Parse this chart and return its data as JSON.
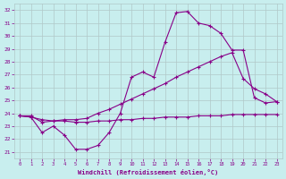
{
  "xlabel": "Windchill (Refroidissement éolien,°C)",
  "xlim": [
    -0.5,
    23.5
  ],
  "ylim": [
    20.5,
    32.5
  ],
  "yticks": [
    21,
    22,
    23,
    24,
    25,
    26,
    27,
    28,
    29,
    30,
    31,
    32
  ],
  "xticks": [
    0,
    1,
    2,
    3,
    4,
    5,
    6,
    7,
    8,
    9,
    10,
    11,
    12,
    13,
    14,
    15,
    16,
    17,
    18,
    19,
    20,
    21,
    22,
    23
  ],
  "background_color": "#c8eeee",
  "grid_color": "#b0c8c8",
  "line_color": "#880088",
  "line1_x": [
    0,
    1,
    2,
    3,
    4,
    5,
    6,
    7,
    8,
    9,
    10,
    11,
    12,
    13,
    14,
    15,
    16,
    17,
    18,
    19,
    20,
    21,
    22,
    23
  ],
  "line1_y": [
    23.8,
    23.7,
    22.5,
    23.0,
    22.3,
    21.2,
    21.2,
    21.5,
    22.5,
    24.0,
    26.8,
    27.2,
    26.8,
    29.5,
    31.8,
    31.9,
    31.0,
    30.8,
    30.2,
    28.9,
    28.9,
    25.2,
    24.8,
    24.9
  ],
  "line2_x": [
    0,
    1,
    2,
    3,
    4,
    5,
    6,
    7,
    8,
    9,
    10,
    11,
    12,
    13,
    14,
    15,
    16,
    17,
    18,
    19,
    20,
    21,
    22,
    23
  ],
  "line2_y": [
    23.8,
    23.8,
    23.3,
    23.4,
    23.5,
    23.5,
    23.6,
    24.0,
    24.3,
    24.7,
    25.1,
    25.5,
    25.9,
    26.3,
    26.8,
    27.2,
    27.6,
    28.0,
    28.4,
    28.7,
    26.7,
    25.9,
    25.5,
    24.9
  ],
  "line3_x": [
    0,
    1,
    2,
    3,
    4,
    5,
    6,
    7,
    8,
    9,
    10,
    11,
    12,
    13,
    14,
    15,
    16,
    17,
    18,
    19,
    20,
    21,
    22,
    23
  ],
  "line3_y": [
    23.8,
    23.7,
    23.5,
    23.4,
    23.4,
    23.3,
    23.3,
    23.4,
    23.4,
    23.5,
    23.5,
    23.6,
    23.6,
    23.7,
    23.7,
    23.7,
    23.8,
    23.8,
    23.8,
    23.9,
    23.9,
    23.9,
    23.9,
    23.9
  ]
}
